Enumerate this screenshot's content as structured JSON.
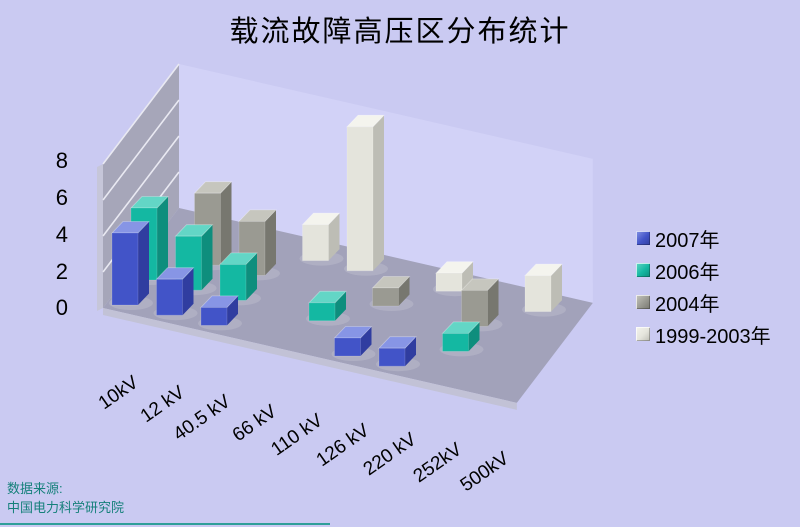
{
  "title": "载流故障高压区分布统计",
  "chart_data": {
    "type": "bar",
    "subtype": "3d-column",
    "title": "载流故障高压区分布统计",
    "categories": [
      "10kV",
      "12 kV",
      "40.5 kV",
      "66 kV",
      "110 kV",
      "126 kV",
      "220 kV",
      "252kV",
      "500kV"
    ],
    "series": [
      {
        "name": "2007年",
        "values": [
          4,
          2,
          1,
          0,
          0,
          1,
          1,
          0,
          0
        ],
        "front": "#4254c8",
        "side": "#303da0",
        "top": "#8795e5"
      },
      {
        "name": "2006年",
        "values": [
          4,
          3,
          2,
          0,
          1,
          0,
          0,
          1,
          0
        ],
        "front": "#14b8a2",
        "side": "#0e8e7d",
        "top": "#63d6c6"
      },
      {
        "name": "2004年",
        "values": [
          0,
          4,
          3,
          0,
          0,
          1,
          0,
          2,
          0
        ],
        "front": "#9a9a92",
        "side": "#77776f",
        "top": "#c6c6be"
      },
      {
        "name": "1999-2003年",
        "values": [
          0,
          0,
          0,
          2,
          8,
          0,
          1,
          0,
          2
        ],
        "front": "#e4e4dc",
        "side": "#bdbdb5",
        "top": "#f4f4ee"
      }
    ],
    "y_ticks": [
      "0",
      "2",
      "4",
      "6",
      "8"
    ],
    "ylim": [
      0,
      8
    ],
    "grid": true,
    "legend_position": "right"
  },
  "source": {
    "line1": "数据来源:",
    "line2": "中国电力科学研究院"
  },
  "colors": {
    "background": "#cacaf2",
    "back_wall": "#d2d2f7",
    "side_wall": "#a6a6b9",
    "wall_edge": "#c6c6d9",
    "gridline": "#e9e9f2",
    "floor": "#a2a2ba",
    "floor_front": "#c2c2d6",
    "source_text": "#15807a",
    "bottom_rule": "#2f9f99"
  }
}
